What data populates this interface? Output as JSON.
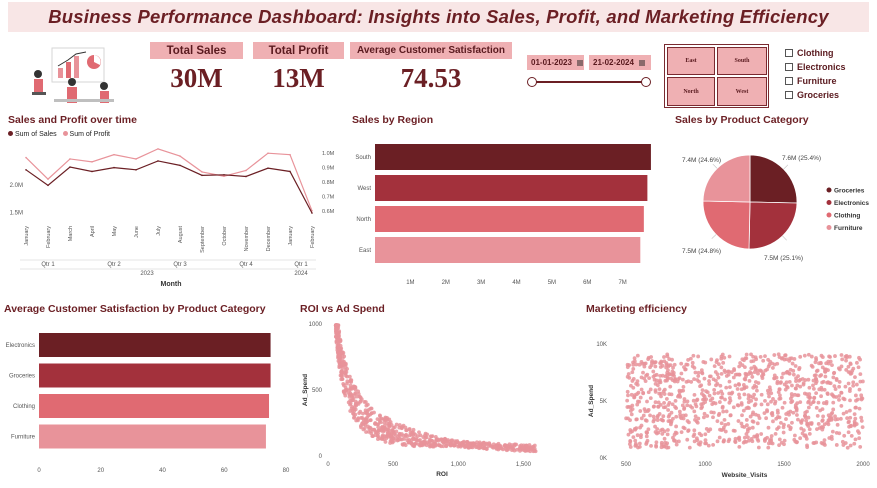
{
  "header": {
    "title": "Business Performance Dashboard: Insights into Sales, Profit, and Marketing Efficiency"
  },
  "kpis": [
    {
      "label": "Total Sales",
      "value": "30M"
    },
    {
      "label": "Total Profit",
      "value": "13M"
    },
    {
      "label": "Average Customer Satisfaction",
      "value": "74.53"
    }
  ],
  "date_filter": {
    "start": "01-01-2023",
    "end": "21-02-2024"
  },
  "region_filter": {
    "buttons": [
      "East",
      "South",
      "North",
      "West"
    ]
  },
  "category_filter": {
    "items": [
      "Clothing",
      "Electronics",
      "Furniture",
      "Groceries"
    ]
  },
  "colors": {
    "dark": "#6b1f24",
    "medium": "#a3313c",
    "light": "#e06a72",
    "lighter": "#e8939a",
    "bg_header": "#f8e6e6",
    "kpi_label_bg": "#efb0b3"
  },
  "icons": {
    "banner": "people-analytics-illustration",
    "calendar": "calendar-icon"
  },
  "charts": {
    "sales_profit": {
      "title": "Sales and Profit over time",
      "legend": [
        "Sum of Sales",
        "Sum of Profit"
      ],
      "months": [
        "January",
        "February",
        "March",
        "April",
        "May",
        "June",
        "July",
        "August",
        "September",
        "October",
        "November",
        "December",
        "January",
        "February"
      ],
      "quarters": [
        "Qtr 1",
        "Qtr 2",
        "Qtr 3",
        "Qtr 4",
        "Qtr 1"
      ],
      "years": [
        "2023",
        "2024"
      ],
      "xlabel": "Month",
      "left_ticks": [
        "2.0M",
        "1.5M"
      ],
      "right_ticks": [
        "1.0M",
        "0.9M",
        "0.8M",
        "0.7M",
        "0.6M"
      ]
    },
    "region": {
      "title": "Sales by Region"
    },
    "product_pie": {
      "title": "Sales by Product Category"
    },
    "satisfaction": {
      "title": "Average Customer Satisfaction by Product Category"
    },
    "roi": {
      "title": "ROI vs Ad Spend",
      "xlabel": "ROI",
      "ylabel": "Ad_Spend"
    },
    "marketing": {
      "title": "Marketing efficiency",
      "xlabel": "Website_Visits",
      "ylabel": "Ad_Spend"
    }
  },
  "chart_data": [
    {
      "type": "line",
      "title": "Sales and Profit over time",
      "x": [
        "January",
        "February",
        "March",
        "April",
        "May",
        "June",
        "July",
        "August",
        "September",
        "October",
        "November",
        "December",
        "January",
        "February"
      ],
      "series": [
        {
          "name": "Sum of Sales",
          "values": [
            2.27,
            1.99,
            2.32,
            2.24,
            2.31,
            2.27,
            2.43,
            2.35,
            2.17,
            2.18,
            2.15,
            2.3,
            2.24,
            1.49
          ],
          "axis": "left"
        },
        {
          "name": "Sum of Profit",
          "values": [
            0.97,
            0.82,
            0.96,
            0.94,
            0.99,
            0.96,
            1.03,
            0.98,
            0.87,
            0.84,
            0.88,
            1.0,
            0.99,
            0.6
          ],
          "axis": "right"
        }
      ],
      "xlabel": "Month",
      "ylim_left": [
        1.4,
        2.7
      ],
      "ylim_right": [
        0.55,
        1.05
      ]
    },
    {
      "type": "bar",
      "orientation": "horizontal",
      "title": "Sales by Region",
      "categories": [
        "South",
        "West",
        "North",
        "East"
      ],
      "values": [
        7.8,
        7.7,
        7.6,
        7.5
      ],
      "unit": "M",
      "xticks": [
        "1M",
        "2M",
        "3M",
        "4M",
        "5M",
        "6M",
        "7M"
      ],
      "xlim": [
        0,
        8
      ]
    },
    {
      "type": "pie",
      "title": "Sales by Product Category",
      "categories": [
        "Groceries",
        "Electronics",
        "Clothing",
        "Furniture"
      ],
      "values": [
        7.6,
        7.5,
        7.5,
        7.4
      ],
      "labels": [
        "7.6M (25.4%)",
        "7.5M (25.1%)",
        "7.5M (24.8%)",
        "7.4M (24.6%)"
      ]
    },
    {
      "type": "bar",
      "orientation": "horizontal",
      "title": "Average Customer Satisfaction by Product Category",
      "categories": [
        "Electronics",
        "Groceries",
        "Clothing",
        "Furniture"
      ],
      "values": [
        75,
        75,
        74.5,
        73.5
      ],
      "xticks": [
        "0",
        "20",
        "40",
        "60",
        "80"
      ],
      "xlim": [
        0,
        80
      ]
    },
    {
      "type": "scatter",
      "title": "ROI vs Ad Spend",
      "xlabel": "ROI",
      "ylabel": "Ad_Spend",
      "xticks": [
        "0",
        "500",
        "1,000",
        "1,500"
      ],
      "yticks": [
        "1000",
        "500",
        "0"
      ],
      "xlim": [
        0,
        1750
      ],
      "ylim": [
        0,
        1000
      ],
      "pattern": "inverse decay: high Ad_Spend near ROI 100-300, tapering toward 0 by ROI 1,500"
    },
    {
      "type": "scatter",
      "title": "Marketing efficiency",
      "xlabel": "Website_Visits",
      "ylabel": "Ad_Spend",
      "xticks": [
        "500",
        "1000",
        "1500",
        "2000"
      ],
      "yticks": [
        "10K",
        "5K",
        "0K"
      ],
      "xlim": [
        500,
        2000
      ],
      "ylim": [
        0,
        10000
      ],
      "pattern": "uniform random cloud Website_Visits 500-2000, Ad_Spend 1K-9K"
    }
  ]
}
